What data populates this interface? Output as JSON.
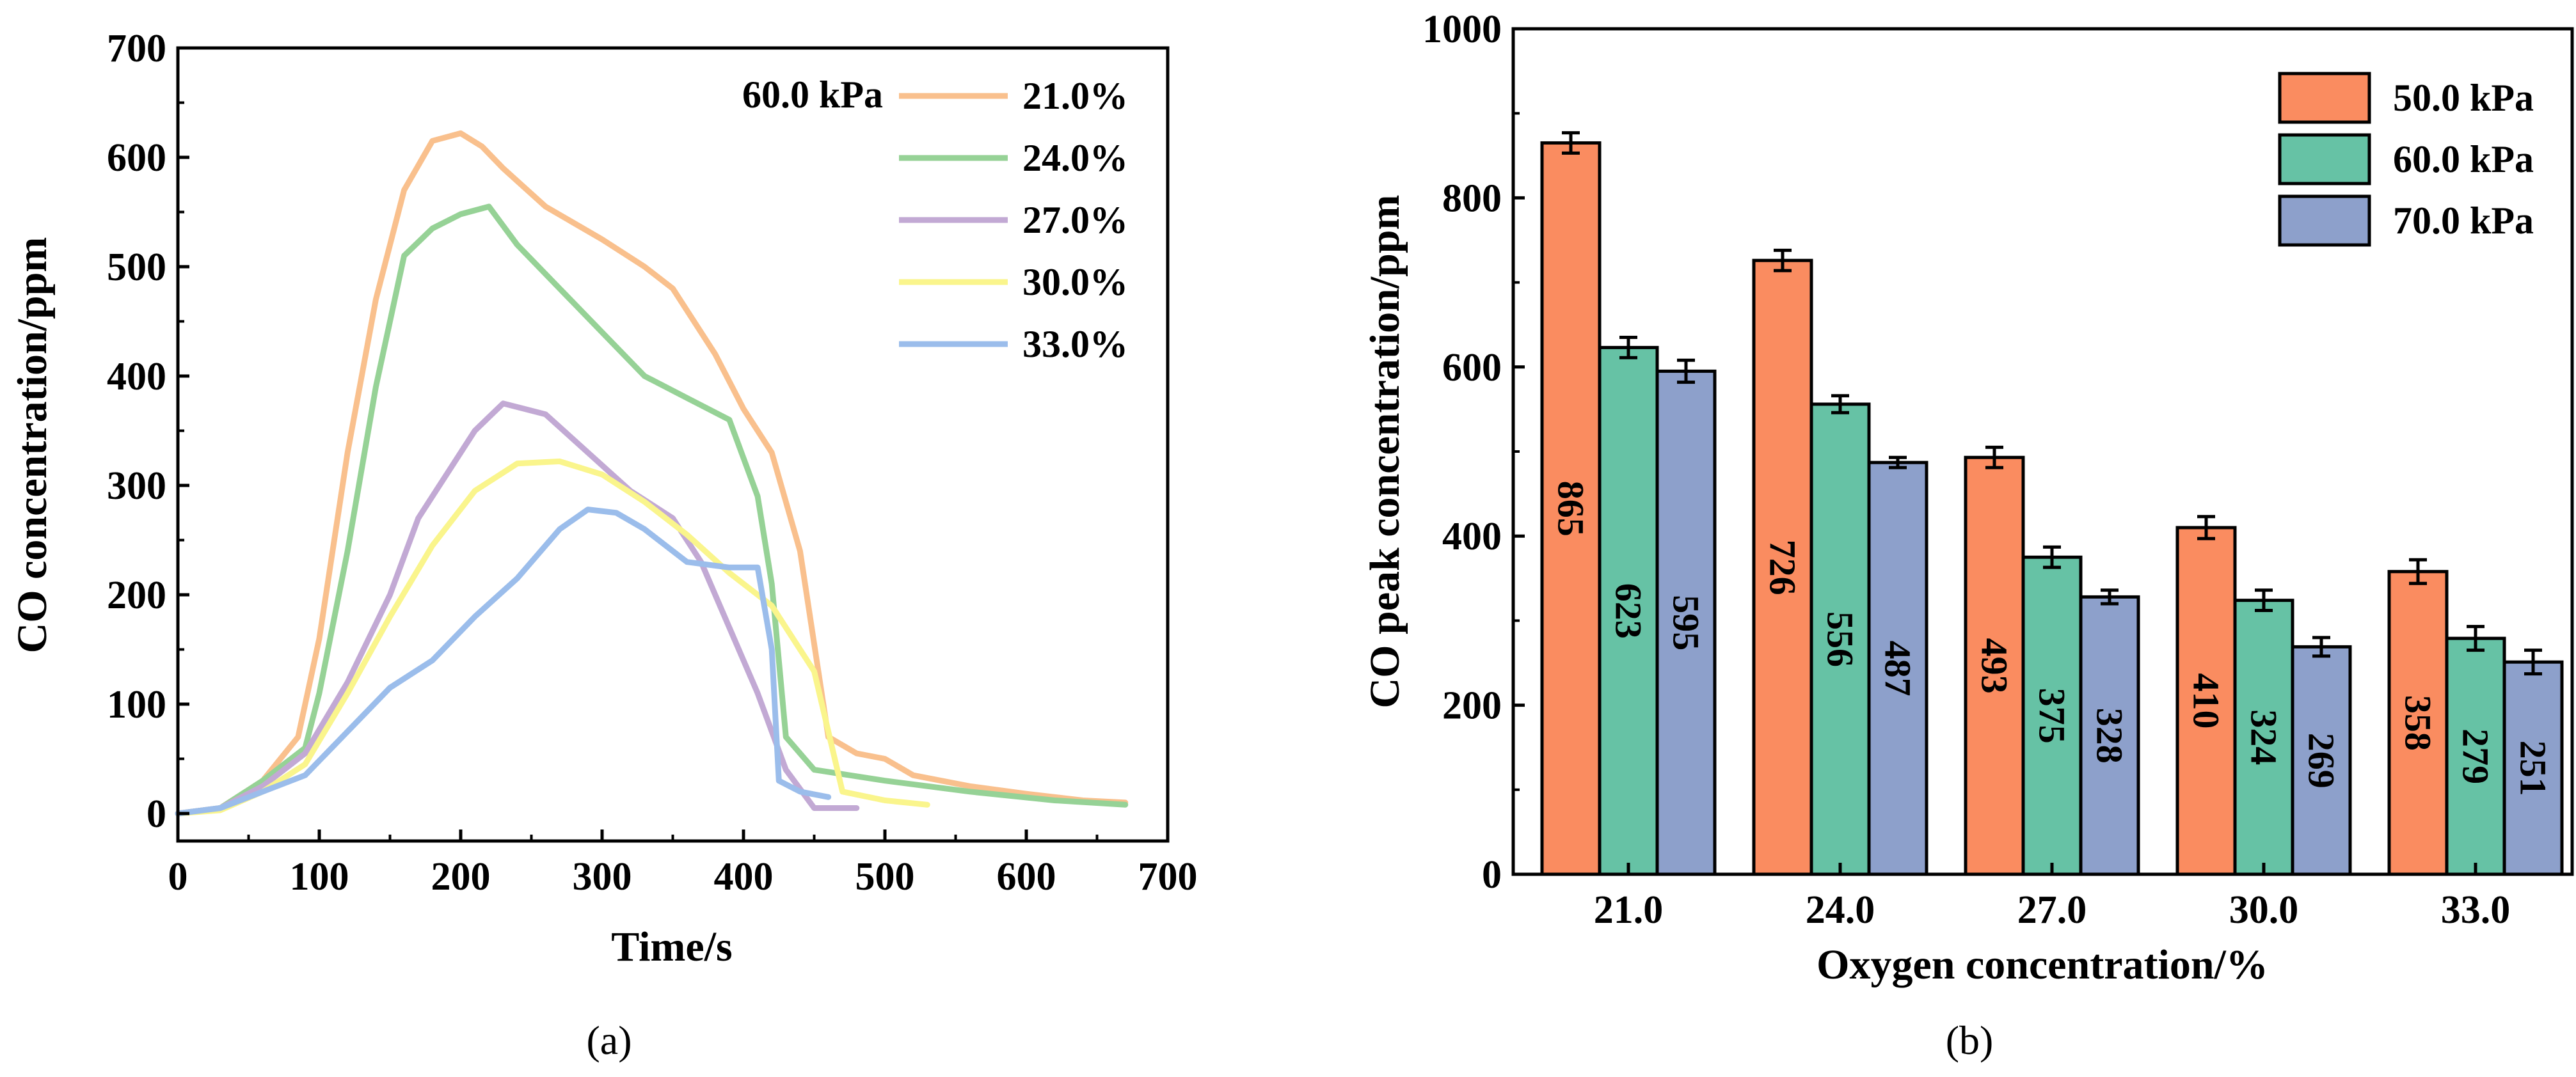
{
  "chart_data": [
    {
      "type": "line",
      "caption": "(a)",
      "xlabel": "Time/s",
      "ylabel": "CO concentration/ppm",
      "xlim": [
        0,
        700
      ],
      "ylim": [
        0,
        700
      ],
      "xticks": [
        "0",
        "100",
        "200",
        "300",
        "400",
        "500",
        "600",
        "700"
      ],
      "yticks": [
        "0",
        "100",
        "200",
        "300",
        "400",
        "500",
        "600",
        "700"
      ],
      "legend_title": "60.0 kPa",
      "series": [
        {
          "name": "21.0%",
          "color": "#F9C08D",
          "x": [
            0,
            30,
            60,
            85,
            100,
            120,
            140,
            160,
            180,
            200,
            215,
            230,
            260,
            300,
            330,
            350,
            380,
            400,
            420,
            440,
            460,
            480,
            500,
            520,
            560,
            600,
            640,
            670
          ],
          "y": [
            0,
            5,
            30,
            70,
            160,
            330,
            470,
            570,
            615,
            622,
            610,
            590,
            555,
            525,
            500,
            480,
            420,
            370,
            330,
            240,
            70,
            55,
            50,
            35,
            25,
            18,
            12,
            10
          ]
        },
        {
          "name": "24.0%",
          "color": "#96D296",
          "x": [
            0,
            30,
            60,
            90,
            100,
            120,
            140,
            160,
            180,
            200,
            220,
            240,
            270,
            300,
            330,
            360,
            390,
            410,
            420,
            430,
            450,
            500,
            560,
            620,
            670
          ],
          "y": [
            0,
            5,
            30,
            60,
            110,
            240,
            390,
            510,
            535,
            548,
            555,
            520,
            480,
            440,
            400,
            380,
            360,
            290,
            210,
            70,
            40,
            30,
            20,
            12,
            8
          ]
        },
        {
          "name": "27.0%",
          "color": "#C2A9D4",
          "x": [
            0,
            30,
            60,
            90,
            120,
            150,
            170,
            190,
            210,
            230,
            260,
            290,
            320,
            350,
            370,
            390,
            410,
            430,
            450,
            480
          ],
          "y": [
            0,
            5,
            25,
            55,
            120,
            200,
            270,
            310,
            350,
            375,
            365,
            330,
            295,
            270,
            230,
            170,
            110,
            40,
            5,
            5
          ]
        },
        {
          "name": "30.0%",
          "color": "#FAF58C",
          "x": [
            0,
            30,
            60,
            90,
            120,
            150,
            180,
            210,
            240,
            270,
            300,
            330,
            360,
            390,
            420,
            450,
            470,
            500,
            530
          ],
          "y": [
            0,
            3,
            20,
            45,
            110,
            180,
            245,
            295,
            320,
            322,
            310,
            285,
            255,
            220,
            190,
            130,
            20,
            12,
            8
          ]
        },
        {
          "name": "33.0%",
          "color": "#9BBDEB",
          "x": [
            0,
            30,
            60,
            90,
            120,
            150,
            180,
            210,
            240,
            270,
            290,
            310,
            330,
            360,
            390,
            410,
            420,
            425,
            440,
            460
          ],
          "y": [
            0,
            5,
            20,
            35,
            75,
            115,
            140,
            180,
            215,
            260,
            278,
            275,
            260,
            230,
            225,
            225,
            150,
            30,
            20,
            15
          ]
        }
      ]
    },
    {
      "type": "bar",
      "caption": "(b)",
      "xlabel": "Oxygen concentration/%",
      "ylabel": "CO peak concentration/ppm",
      "ylim": [
        0,
        1000
      ],
      "yticks": [
        "0",
        "200",
        "400",
        "600",
        "800",
        "1000"
      ],
      "categories": [
        "21.0",
        "24.0",
        "27.0",
        "30.0",
        "33.0"
      ],
      "series": [
        {
          "name": "50.0 kPa",
          "color": "#FA8C60",
          "values": [
            865,
            726,
            493,
            410,
            358
          ],
          "errors": [
            12,
            12,
            12,
            13,
            14
          ],
          "labels": [
            "865",
            "726",
            "493",
            "410",
            "358"
          ]
        },
        {
          "name": "60.0 kPa",
          "color": "#66C2A5",
          "values": [
            623,
            556,
            375,
            324,
            279
          ],
          "errors": [
            12,
            10,
            12,
            12,
            14
          ],
          "labels": [
            "623",
            "556",
            "375",
            "324",
            "279"
          ]
        },
        {
          "name": "70.0 kPa",
          "color": "#8DA0CB",
          "values": [
            595,
            487,
            328,
            269,
            251
          ],
          "errors": [
            13,
            6,
            8,
            11,
            14
          ],
          "labels": [
            "595",
            "487",
            "328",
            "269",
            "251"
          ]
        }
      ]
    }
  ]
}
